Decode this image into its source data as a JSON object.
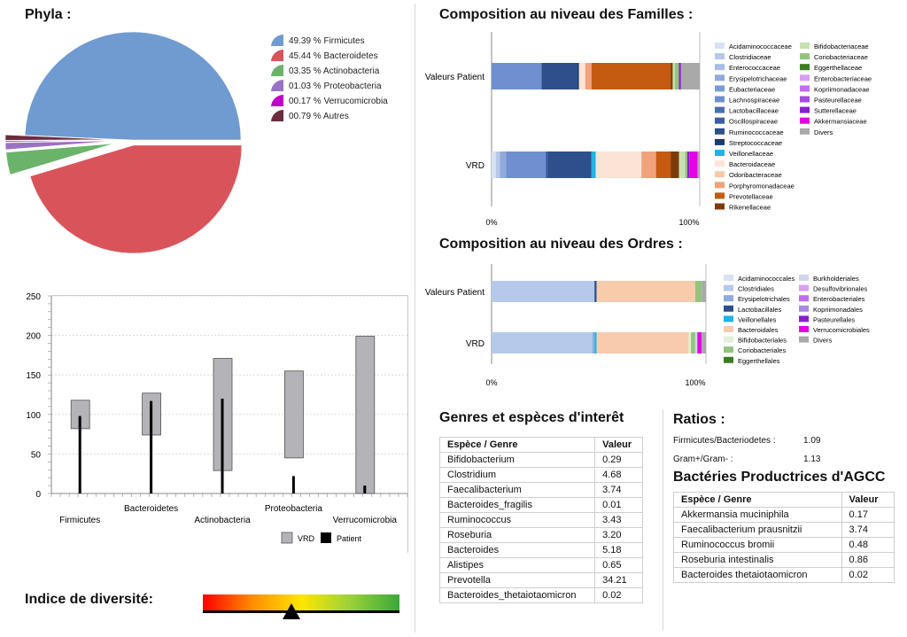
{
  "phyla": {
    "title": "Phyla :",
    "slices": [
      {
        "label": "49.39 % Firmicutes",
        "value": 49.39,
        "color": "#6f9bd0"
      },
      {
        "label": "45.44 % Bacteroidetes",
        "value": 45.44,
        "color": "#d9545a"
      },
      {
        "label": "03.35 % Actinobacteria",
        "value": 3.35,
        "color": "#6bb36b"
      },
      {
        "label": "01.03 % Proteobacteria",
        "value": 1.03,
        "color": "#9a72c4"
      },
      {
        "label": "00.17 % Verrucomicrobia",
        "value": 0.17,
        "color": "#c000c8"
      },
      {
        "label": "00.79 % Autres",
        "value": 0.79,
        "color": "#6b2d3e"
      }
    ]
  },
  "chart_data": [
    {
      "type": "pie",
      "title": "Phyla :",
      "categories": [
        "Firmicutes",
        "Bacteroidetes",
        "Actinobacteria",
        "Proteobacteria",
        "Verrucomicrobia",
        "Autres"
      ],
      "values": [
        49.39,
        45.44,
        3.35,
        1.03,
        0.17,
        0.79
      ]
    },
    {
      "type": "bar",
      "categories": [
        "Firmicutes",
        "Bacteroidetes",
        "Actinobacteria",
        "Proteobacteria",
        "Verrucomicrobia"
      ],
      "ylim": [
        0,
        250
      ],
      "yticks": [
        "250",
        "200",
        "150",
        "100",
        "50",
        "0"
      ],
      "series": [
        {
          "name": "VRD",
          "color": "#b3b3b8",
          "ranges": [
            [
              82,
              118
            ],
            [
              74,
              127
            ],
            [
              29,
              171
            ],
            [
              45,
              155
            ],
            [
              0,
              199
            ]
          ]
        },
        {
          "name": "Patient",
          "color": "#000000",
          "values": [
            98,
            117,
            120,
            22,
            10
          ]
        }
      ],
      "legend": [
        "VRD",
        "Patient"
      ]
    },
    {
      "type": "bar",
      "title": "Composition au niveau des Familles :",
      "categories": [
        "Valeurs Patient",
        "VRD"
      ],
      "xticks": [
        "0%",
        "100%"
      ],
      "series": [
        {
          "name": "Acidaminococcaceae",
          "color": "#d8e2f2",
          "values": [
            0,
            2
          ]
        },
        {
          "name": "Clostridiaceae",
          "color": "#b7c9ea",
          "values": [
            0,
            2
          ]
        },
        {
          "name": "Enterococcaceae",
          "color": "#a7bde6",
          "values": [
            0,
            0
          ]
        },
        {
          "name": "Erysipelotrichaceae",
          "color": "#8faadc",
          "values": [
            0,
            3
          ]
        },
        {
          "name": "Eubacteriaceae",
          "color": "#7b9bd6",
          "values": [
            0,
            0
          ]
        },
        {
          "name": "Lachnospiraceae",
          "color": "#6f8fd0",
          "values": [
            24,
            19
          ]
        },
        {
          "name": "Lactobacillaceae",
          "color": "#4a6fb0",
          "values": [
            0,
            0
          ]
        },
        {
          "name": "Oscillospiraceae",
          "color": "#3a5ea0",
          "values": [
            0,
            1
          ]
        },
        {
          "name": "Ruminococcaceae",
          "color": "#2e4f8c",
          "values": [
            17,
            21
          ]
        },
        {
          "name": "Streptococcaceae",
          "color": "#1c3a6e",
          "values": [
            1,
            0
          ]
        },
        {
          "name": "Veillonellaceae",
          "color": "#1fb3e6",
          "values": [
            0,
            2
          ]
        },
        {
          "name": "Bacteroidaceae",
          "color": "#fbe3d6",
          "values": [
            3,
            22
          ]
        },
        {
          "name": "Odoribacteraceae",
          "color": "#f8c9a9",
          "values": [
            0,
            0
          ]
        },
        {
          "name": "Porphyromonadaceae",
          "color": "#f2a27a",
          "values": [
            3,
            7
          ]
        },
        {
          "name": "Prevotellaceae",
          "color": "#c55a11",
          "values": [
            38,
            7
          ]
        },
        {
          "name": "Rikenellaceae",
          "color": "#7f3a0c",
          "values": [
            1,
            4
          ]
        },
        {
          "name": "Bifidobacteriaceae",
          "color": "#c7e2b0",
          "values": [
            1,
            3
          ]
        },
        {
          "name": "Coriobacteriaceae",
          "color": "#93c47d",
          "values": [
            2,
            1
          ]
        },
        {
          "name": "Eggerthellaceae",
          "color": "#3c7d22",
          "values": [
            0,
            0
          ]
        },
        {
          "name": "Enterobacteriaceae",
          "color": "#d99ff5",
          "values": [
            0,
            0
          ]
        },
        {
          "name": "Kopriimonadaceae",
          "color": "#c26cf0",
          "values": [
            0,
            0
          ]
        },
        {
          "name": "Pasteurellaceae",
          "color": "#a24ce0",
          "values": [
            0,
            0
          ]
        },
        {
          "name": "Sutterellaceae",
          "color": "#8a1fd0",
          "values": [
            1,
            1
          ]
        },
        {
          "name": "Akkermansiaceae",
          "color": "#e600e6",
          "values": [
            0,
            4
          ]
        },
        {
          "name": "Divers",
          "color": "#a9a9a9",
          "values": [
            9,
            1
          ]
        }
      ]
    },
    {
      "type": "bar",
      "title": "Composition au niveau des Ordres :",
      "categories": [
        "Valeurs Patient",
        "VRD"
      ],
      "xticks": [
        "0%",
        "100%"
      ],
      "series": [
        {
          "name": "Acidaminococcales",
          "color": "#d8e2f2",
          "values": [
            0,
            0
          ]
        },
        {
          "name": "Clostridiales",
          "color": "#b7c9ea",
          "values": [
            48,
            47
          ]
        },
        {
          "name": "Erysipelotrichales",
          "color": "#8faadc",
          "values": [
            0,
            1
          ]
        },
        {
          "name": "Lactobacillales",
          "color": "#2e4f8c",
          "values": [
            1,
            0
          ]
        },
        {
          "name": "Veillonellales",
          "color": "#1fb3e6",
          "values": [
            0,
            1
          ]
        },
        {
          "name": "Bacteroidales",
          "color": "#f8cbad",
          "values": [
            46,
            43
          ]
        },
        {
          "name": "Bifidobacteriales",
          "color": "#e2efd9",
          "values": [
            0,
            1
          ]
        },
        {
          "name": "Coriobacteriales",
          "color": "#93c47d",
          "values": [
            3,
            2
          ]
        },
        {
          "name": "Eggerthellales",
          "color": "#3c7d22",
          "values": [
            0,
            0
          ]
        },
        {
          "name": "Burkholderiales",
          "color": "#d0d6ee",
          "values": [
            0,
            1
          ]
        },
        {
          "name": "Desulfovibrionales",
          "color": "#d99ff5",
          "values": [
            0,
            0
          ]
        },
        {
          "name": "Enterobacteriales",
          "color": "#c26cf0",
          "values": [
            0,
            0
          ]
        },
        {
          "name": "Kopriimonadales",
          "color": "#a989e0",
          "values": [
            0,
            0
          ]
        },
        {
          "name": "Pasteurellales",
          "color": "#8a1fd0",
          "values": [
            0,
            0
          ]
        },
        {
          "name": "Verrucomicrobiales",
          "color": "#e600e6",
          "values": [
            0,
            2
          ]
        },
        {
          "name": "Divers",
          "color": "#a9a9a9",
          "values": [
            2,
            2
          ]
        }
      ]
    }
  ],
  "genres": {
    "title": "Genres et espèces d'interêt",
    "headers": [
      "Espèce / Genre",
      "Valeur"
    ],
    "rows": [
      [
        "Bifidobacterium",
        "0.29"
      ],
      [
        "Clostridium",
        "4.68"
      ],
      [
        "Faecalibacterium",
        "3.74"
      ],
      [
        "Bacteroides_fragilis",
        "0.01"
      ],
      [
        "Ruminococcus",
        "3.43"
      ],
      [
        "Roseburia",
        "3.20"
      ],
      [
        "Bacteroides",
        "5.18"
      ],
      [
        "Alistipes",
        "0.65"
      ],
      [
        "Prevotella",
        "34.21"
      ],
      [
        "Bacteroides_thetaiotaomicron",
        "0.02"
      ]
    ]
  },
  "ratios": {
    "title": "Ratios :",
    "items": [
      {
        "label": "Firmicutes/Bacteriodetes :",
        "value": "1.09"
      },
      {
        "label": "Gram+/Gram- :",
        "value": "1.13"
      }
    ]
  },
  "agcc": {
    "title": "Bactéries Productrices d'AGCC",
    "headers": [
      "Espèce / Genre",
      "Valeur"
    ],
    "rows": [
      [
        "Akkermansia muciniphila",
        "0.17"
      ],
      [
        "Faecalibacterium prausnitzii",
        "3.74"
      ],
      [
        "Ruminococcus bromii",
        "0.48"
      ],
      [
        "Roseburia intestinalis",
        "0.86"
      ],
      [
        "Bacteroides thetaiotaomicron",
        "0.02"
      ]
    ]
  },
  "diversity": {
    "title": "Indice de diversité:",
    "level": 0.45,
    "gradient": [
      "#ff0000",
      "#ff8c00",
      "#ffe600",
      "#9bd13a",
      "#3aa83a"
    ]
  }
}
